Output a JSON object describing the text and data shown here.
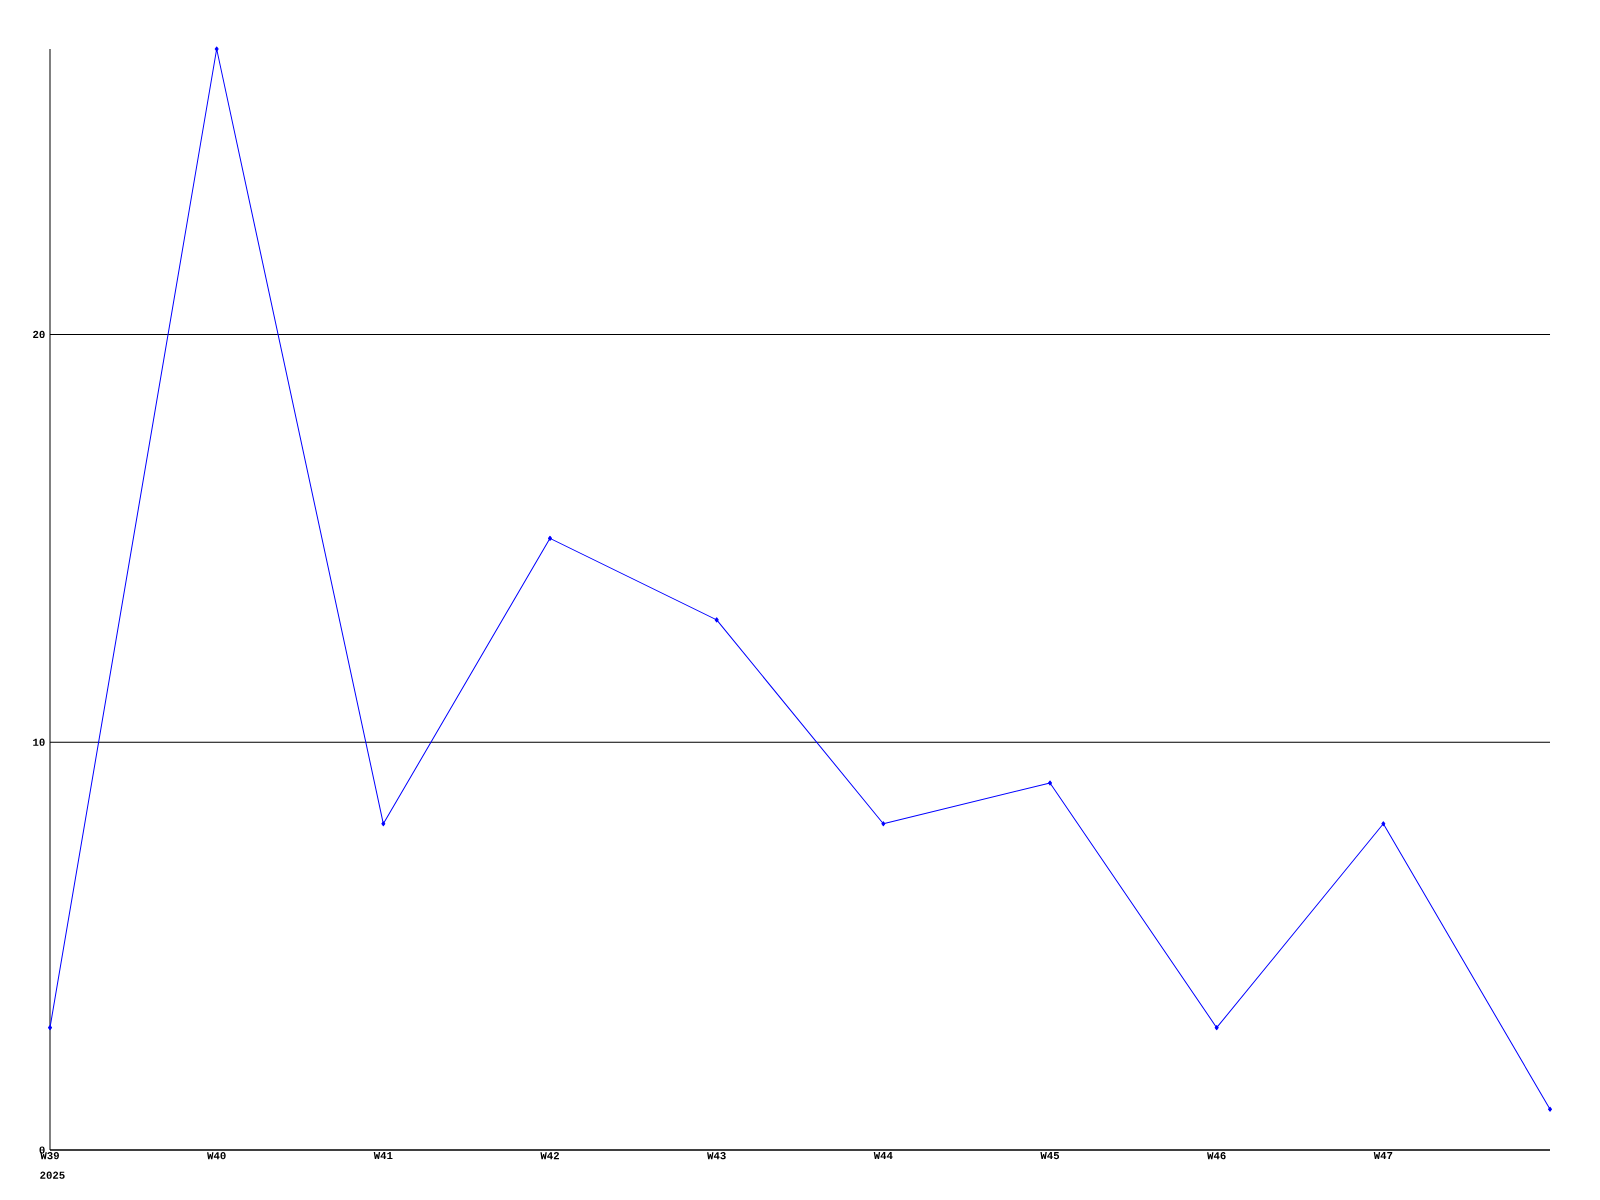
{
  "chart_data": {
    "type": "line",
    "categories": [
      "W39",
      "W40",
      "W41",
      "W42",
      "W43",
      "W44",
      "W45",
      "W46",
      "W47",
      null
    ],
    "series": [
      {
        "color": "#0000ff",
        "values": [
          3,
          27,
          8,
          15,
          13,
          8,
          9,
          3,
          8,
          1
        ]
      }
    ],
    "ylim": [
      0,
      27
    ],
    "yticks": [
      0,
      10,
      20
    ],
    "grid": "y",
    "marker": "diamond",
    "line_style": "solid",
    "annotations": [
      "2025"
    ]
  }
}
